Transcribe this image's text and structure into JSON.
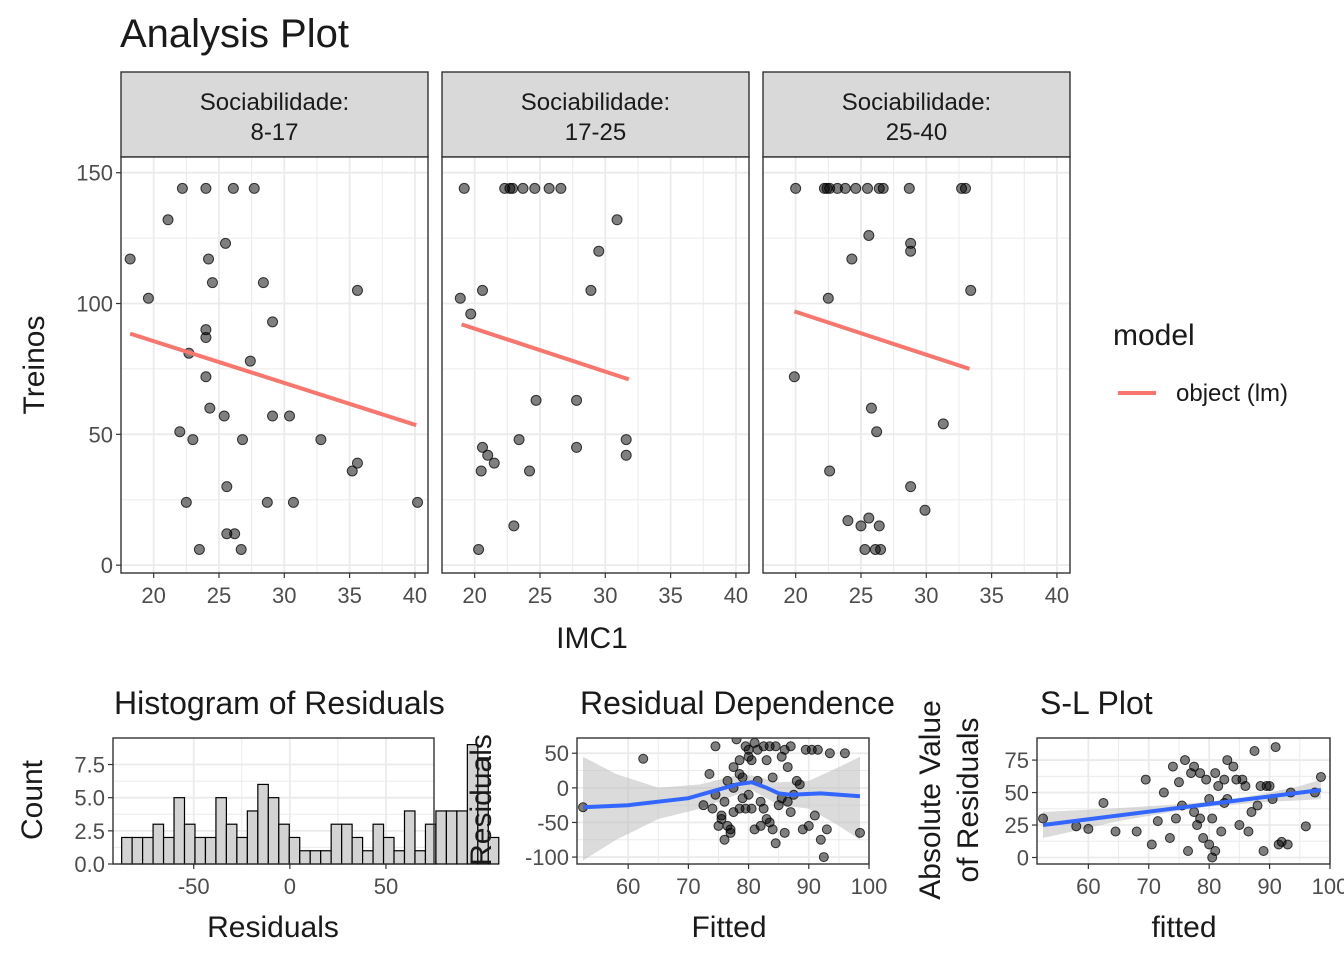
{
  "title": "Analysis Plot",
  "colors": {
    "point": "#000000",
    "lm_line": "#F8766D",
    "smooth_line": "#3366FF",
    "ribbon": "#BEBEBE",
    "strip": "#D9D9D9",
    "grid": "#EBEBEB",
    "hist_fill": "#D3D3D3"
  },
  "chart_data": [
    {
      "id": "main-facets",
      "type": "scatter",
      "xlabel": "IMC1",
      "ylabel": "Treinos",
      "xlim": [
        17.5,
        41
      ],
      "ylim": [
        -3,
        156
      ],
      "xticks": [
        20,
        25,
        30,
        35,
        40
      ],
      "yticks": [
        0,
        50,
        100,
        150
      ],
      "legend": {
        "title": "model",
        "entries": [
          "object (lm)"
        ],
        "placement": "right"
      },
      "panels": [
        {
          "strip": [
            "Sociabilidade:",
            "8-17"
          ],
          "points": [
            [
              18.2,
              117
            ],
            [
              19.6,
              102
            ],
            [
              21.1,
              132
            ],
            [
              22.2,
              144
            ],
            [
              22.0,
              51
            ],
            [
              22.5,
              24
            ],
            [
              23.0,
              48
            ],
            [
              22.7,
              81
            ],
            [
              23.5,
              6
            ],
            [
              24.0,
              144
            ],
            [
              24.2,
              117
            ],
            [
              24.0,
              90
            ],
            [
              24.0,
              87
            ],
            [
              24.0,
              72
            ],
            [
              24.3,
              60
            ],
            [
              24.5,
              108
            ],
            [
              25.5,
              123
            ],
            [
              25.4,
              57
            ],
            [
              25.6,
              30
            ],
            [
              25.6,
              12
            ],
            [
              26.1,
              144
            ],
            [
              26.2,
              12
            ],
            [
              26.7,
              6
            ],
            [
              26.8,
              48
            ],
            [
              27.4,
              78
            ],
            [
              27.7,
              144
            ],
            [
              28.4,
              108
            ],
            [
              28.7,
              24
            ],
            [
              29.1,
              93
            ],
            [
              29.1,
              57
            ],
            [
              30.4,
              57
            ],
            [
              30.7,
              24
            ],
            [
              32.8,
              48
            ],
            [
              35.2,
              36
            ],
            [
              35.6,
              39
            ],
            [
              35.6,
              105
            ],
            [
              40.2,
              24
            ]
          ],
          "line": [
            [
              18.2,
              88.5
            ],
            [
              40.1,
              53.5
            ]
          ]
        },
        {
          "strip": [
            "Sociabilidade:",
            "17-25"
          ],
          "points": [
            [
              19.2,
              144
            ],
            [
              18.9,
              102
            ],
            [
              19.7,
              96
            ],
            [
              20.3,
              6
            ],
            [
              20.6,
              45
            ],
            [
              20.6,
              105
            ],
            [
              20.5,
              36
            ],
            [
              21.0,
              42
            ],
            [
              21.5,
              39
            ],
            [
              22.3,
              144
            ],
            [
              22.7,
              144
            ],
            [
              22.9,
              144
            ],
            [
              23.0,
              15
            ],
            [
              23.4,
              48
            ],
            [
              23.7,
              144
            ],
            [
              24.2,
              36
            ],
            [
              24.6,
              144
            ],
            [
              24.7,
              63
            ],
            [
              25.7,
              144
            ],
            [
              26.6,
              144
            ],
            [
              27.8,
              45
            ],
            [
              27.8,
              63
            ],
            [
              28.9,
              105
            ],
            [
              29.5,
              120
            ],
            [
              30.9,
              132
            ],
            [
              31.6,
              48
            ],
            [
              31.6,
              42
            ]
          ],
          "line": [
            [
              19.0,
              92
            ],
            [
              31.8,
              71
            ]
          ]
        },
        {
          "strip": [
            "Sociabilidade:",
            "25-40"
          ],
          "points": [
            [
              20.0,
              144
            ],
            [
              19.9,
              72
            ],
            [
              22.2,
              144
            ],
            [
              22.4,
              144
            ],
            [
              22.6,
              144
            ],
            [
              22.5,
              102
            ],
            [
              22.6,
              36
            ],
            [
              23.2,
              144
            ],
            [
              23.8,
              144
            ],
            [
              24.0,
              17
            ],
            [
              24.3,
              117
            ],
            [
              24.6,
              144
            ],
            [
              25.0,
              15
            ],
            [
              25.3,
              6
            ],
            [
              25.5,
              144
            ],
            [
              25.6,
              18
            ],
            [
              25.6,
              126
            ],
            [
              25.8,
              60
            ],
            [
              26.1,
              6
            ],
            [
              26.2,
              51
            ],
            [
              26.4,
              144
            ],
            [
              26.4,
              15
            ],
            [
              26.5,
              6
            ],
            [
              26.7,
              144
            ],
            [
              28.7,
              144
            ],
            [
              28.8,
              123
            ],
            [
              28.8,
              120
            ],
            [
              28.8,
              30
            ],
            [
              29.9,
              21
            ],
            [
              31.3,
              54
            ],
            [
              32.7,
              144
            ],
            [
              33.0,
              144
            ],
            [
              33.4,
              105
            ]
          ],
          "line": [
            [
              19.9,
              97
            ],
            [
              33.3,
              75
            ]
          ]
        }
      ]
    },
    {
      "id": "histogram",
      "type": "bar",
      "title": "Histogram of Residuals",
      "xlabel": "Residuals",
      "ylabel": "Count",
      "xlim": [
        -92,
        75
      ],
      "ylim": [
        0,
        9.5
      ],
      "xticks": [
        -50,
        0,
        50
      ],
      "yticks": [
        0.0,
        2.5,
        5.0,
        7.5
      ],
      "bin_start": -87.5,
      "bin_width": 5.45,
      "counts": [
        2,
        2,
        2,
        3,
        2,
        5,
        3,
        2,
        2,
        5,
        3,
        2,
        4,
        6,
        5,
        3,
        2,
        1,
        1,
        1,
        3,
        3,
        2,
        1,
        3,
        2,
        1,
        4,
        1,
        3,
        4,
        4,
        4,
        9,
        8,
        2
      ]
    },
    {
      "id": "residual-dependence",
      "type": "scatter",
      "title": "Residual Dependence",
      "xlabel": "Fitted",
      "ylabel": "Residuals",
      "xlim": [
        51.5,
        100
      ],
      "ylim": [
        -110,
        72
      ],
      "xticks": [
        60,
        70,
        80,
        90,
        100
      ],
      "yticks": [
        -100,
        -50,
        0,
        50
      ],
      "points": [
        [
          52.5,
          -28
        ],
        [
          62.5,
          42
        ],
        [
          72.5,
          -25
        ],
        [
          73.5,
          20
        ],
        [
          74.0,
          -30
        ],
        [
          74.5,
          -10
        ],
        [
          74.5,
          60
        ],
        [
          75.0,
          -55
        ],
        [
          75.5,
          -45
        ],
        [
          75.5,
          -40
        ],
        [
          76.0,
          -75
        ],
        [
          76.0,
          -20
        ],
        [
          76.5,
          10
        ],
        [
          76.5,
          -55
        ],
        [
          77.0,
          -60
        ],
        [
          77.0,
          -65
        ],
        [
          77.5,
          30
        ],
        [
          77.5,
          -35
        ],
        [
          77.5,
          0
        ],
        [
          78.0,
          70
        ],
        [
          78.5,
          40
        ],
        [
          78.5,
          20
        ],
        [
          78.5,
          -30
        ],
        [
          79.0,
          -15
        ],
        [
          79.0,
          15
        ],
        [
          79.5,
          60
        ],
        [
          79.5,
          -30
        ],
        [
          80.0,
          55
        ],
        [
          80.0,
          45
        ],
        [
          80.0,
          -10
        ],
        [
          80.5,
          40
        ],
        [
          80.5,
          -30
        ],
        [
          81.0,
          65
        ],
        [
          81.0,
          -60
        ],
        [
          81.5,
          55
        ],
        [
          81.5,
          10
        ],
        [
          82.0,
          -55
        ],
        [
          82.0,
          -20
        ],
        [
          82.5,
          60
        ],
        [
          82.5,
          -30
        ],
        [
          83.0,
          -45
        ],
        [
          83.0,
          40
        ],
        [
          83.5,
          60
        ],
        [
          83.5,
          -50
        ],
        [
          84.0,
          -60
        ],
        [
          84.0,
          15
        ],
        [
          84.5,
          60
        ],
        [
          84.5,
          -80
        ],
        [
          85.0,
          -25
        ],
        [
          85.5,
          45
        ],
        [
          85.5,
          -15
        ],
        [
          86.0,
          55
        ],
        [
          86.0,
          -65
        ],
        [
          86.5,
          30
        ],
        [
          86.5,
          -20
        ],
        [
          87.0,
          -35
        ],
        [
          87.0,
          60
        ],
        [
          87.5,
          -10
        ],
        [
          88.0,
          10
        ],
        [
          88.5,
          5
        ],
        [
          89.0,
          -60
        ],
        [
          89.5,
          55
        ],
        [
          90.0,
          -55
        ],
        [
          90.5,
          55
        ],
        [
          91.0,
          -40
        ],
        [
          91.5,
          55
        ],
        [
          92.0,
          -75
        ],
        [
          92.5,
          -100
        ],
        [
          93.0,
          -60
        ],
        [
          93.5,
          50
        ],
        [
          96.0,
          50
        ],
        [
          98.5,
          -65
        ]
      ],
      "smooth": [
        [
          52.5,
          -28
        ],
        [
          60,
          -25
        ],
        [
          70,
          -15
        ],
        [
          78,
          5
        ],
        [
          80.5,
          8
        ],
        [
          83,
          0
        ],
        [
          85,
          -8
        ],
        [
          87,
          -10
        ],
        [
          92,
          -8
        ],
        [
          98.5,
          -12
        ]
      ],
      "ribbon_upper": [
        [
          52.5,
          45
        ],
        [
          58,
          20
        ],
        [
          65,
          0
        ],
        [
          72,
          5
        ],
        [
          78,
          18
        ],
        [
          80.5,
          18
        ],
        [
          85,
          8
        ],
        [
          90,
          10
        ],
        [
          95,
          30
        ],
        [
          98.5,
          45
        ]
      ],
      "ribbon_lower": [
        [
          52.5,
          -105
        ],
        [
          58,
          -75
        ],
        [
          65,
          -45
        ],
        [
          72,
          -30
        ],
        [
          78,
          -10
        ],
        [
          80.5,
          -3
        ],
        [
          85,
          -25
        ],
        [
          90,
          -30
        ],
        [
          95,
          -55
        ],
        [
          98.5,
          -75
        ]
      ]
    },
    {
      "id": "scale-location",
      "type": "scatter",
      "title": "S-L Plot",
      "xlabel": "fitted",
      "ylabel": [
        "Absolute Value",
        "of Residuals"
      ],
      "xlim": [
        51.5,
        100
      ],
      "ylim": [
        -5,
        92
      ],
      "xticks": [
        60,
        70,
        80,
        90,
        100
      ],
      "yticks": [
        0,
        25,
        50,
        75
      ],
      "points": [
        [
          52.5,
          30
        ],
        [
          58,
          24
        ],
        [
          60,
          22
        ],
        [
          62.5,
          42
        ],
        [
          64.5,
          20
        ],
        [
          68,
          20
        ],
        [
          69.5,
          60
        ],
        [
          70.5,
          10
        ],
        [
          71.5,
          28
        ],
        [
          72.5,
          50
        ],
        [
          73.5,
          15
        ],
        [
          74.0,
          70
        ],
        [
          74.5,
          30
        ],
        [
          75.0,
          58
        ],
        [
          75.5,
          40
        ],
        [
          76.0,
          75
        ],
        [
          76.5,
          5
        ],
        [
          77.0,
          65
        ],
        [
          77.5,
          35
        ],
        [
          77.5,
          70
        ],
        [
          78.0,
          25
        ],
        [
          78.5,
          65
        ],
        [
          78.5,
          30
        ],
        [
          79.0,
          15
        ],
        [
          79.5,
          60
        ],
        [
          80.0,
          45
        ],
        [
          80.0,
          10
        ],
        [
          80.5,
          0
        ],
        [
          80.5,
          30
        ],
        [
          81.0,
          65
        ],
        [
          81.0,
          5
        ],
        [
          81.5,
          55
        ],
        [
          82.0,
          20
        ],
        [
          82.5,
          60
        ],
        [
          82.5,
          42
        ],
        [
          83.0,
          45
        ],
        [
          83.0,
          75
        ],
        [
          84.0,
          70
        ],
        [
          84.5,
          60
        ],
        [
          85.0,
          25
        ],
        [
          85.5,
          60
        ],
        [
          86.0,
          55
        ],
        [
          86.5,
          20
        ],
        [
          87.0,
          35
        ],
        [
          87.5,
          82
        ],
        [
          88.0,
          40
        ],
        [
          88.5,
          55
        ],
        [
          89.0,
          5
        ],
        [
          89.5,
          55
        ],
        [
          90.0,
          55
        ],
        [
          90.5,
          45
        ],
        [
          91.0,
          85
        ],
        [
          91.5,
          10
        ],
        [
          92.0,
          12
        ],
        [
          93.0,
          10
        ],
        [
          93.5,
          50
        ],
        [
          96.0,
          24
        ],
        [
          97.5,
          50
        ],
        [
          98.5,
          62
        ]
      ],
      "smooth": [
        [
          52.5,
          25
        ],
        [
          98.5,
          52
        ]
      ],
      "ribbon_upper": [
        [
          52.5,
          35
        ],
        [
          65,
          38
        ],
        [
          75,
          41
        ],
        [
          80,
          43
        ],
        [
          85,
          46
        ],
        [
          90,
          50
        ],
        [
          95,
          55
        ],
        [
          98.5,
          60
        ]
      ],
      "ribbon_lower": [
        [
          52.5,
          15
        ],
        [
          65,
          28
        ],
        [
          75,
          36
        ],
        [
          80,
          39
        ],
        [
          85,
          41
        ],
        [
          90,
          43
        ],
        [
          95,
          44
        ],
        [
          98.5,
          45
        ]
      ]
    }
  ]
}
